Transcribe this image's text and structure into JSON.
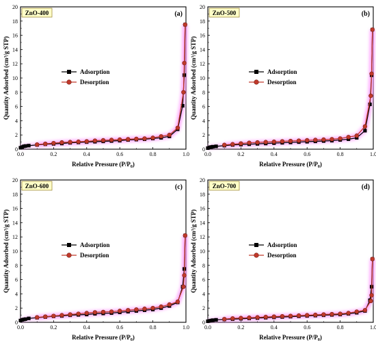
{
  "colors": {
    "adsorption": "#000000",
    "desorption": "#c0392b",
    "desorption_edge": "#7a1f14",
    "tag_fill": "#ffffc8",
    "tag_stroke": "#a08c3c",
    "glow": "#ff99ff"
  },
  "chart_data": [
    {
      "type": "line",
      "panel_tag": "ZnO-400",
      "panel_letter": "(a)",
      "xlabel_main": "Relative Pressure (P/P",
      "xlabel_sub": "0",
      "xlabel_tail": ")",
      "ylabel": "Quantity Adsorbed (cm³/g STP)",
      "xlim": [
        0.0,
        1.0
      ],
      "ylim": [
        0,
        20
      ],
      "xticks": [
        "0.0",
        "0.2",
        "0.4",
        "0.6",
        "0.8",
        "1.0"
      ],
      "yticks": [
        "0",
        "2",
        "4",
        "6",
        "8",
        "10",
        "12",
        "14",
        "16",
        "18",
        "20"
      ],
      "legend_placement": "center-left",
      "series": [
        {
          "name": "Adsorption",
          "marker": "square",
          "x": [
            0.0,
            0.01,
            0.02,
            0.03,
            0.05,
            0.1,
            0.15,
            0.2,
            0.25,
            0.3,
            0.35,
            0.4,
            0.45,
            0.5,
            0.55,
            0.6,
            0.65,
            0.7,
            0.75,
            0.8,
            0.85,
            0.9,
            0.95,
            0.98,
            0.99,
            0.995
          ],
          "y": [
            0.2,
            0.3,
            0.4,
            0.45,
            0.5,
            0.6,
            0.7,
            0.75,
            0.8,
            0.9,
            0.95,
            1.0,
            1.05,
            1.1,
            1.15,
            1.2,
            1.3,
            1.35,
            1.4,
            1.5,
            1.6,
            1.8,
            2.8,
            6.1,
            10.4,
            17.5
          ]
        },
        {
          "name": "Desorption",
          "marker": "circle",
          "x": [
            0.995,
            0.99,
            0.985,
            0.95,
            0.9,
            0.85,
            0.8,
            0.75,
            0.7,
            0.65,
            0.6,
            0.55,
            0.5,
            0.45,
            0.4,
            0.35,
            0.3,
            0.25,
            0.2,
            0.15,
            0.1
          ],
          "y": [
            17.5,
            12.1,
            8.0,
            3.0,
            2.0,
            1.8,
            1.6,
            1.5,
            1.45,
            1.4,
            1.35,
            1.3,
            1.25,
            1.2,
            1.1,
            1.05,
            1.0,
            0.95,
            0.85,
            0.75,
            0.65
          ]
        }
      ]
    },
    {
      "type": "line",
      "panel_tag": "ZnO-500",
      "panel_letter": "(b)",
      "xlabel_main": "Relative Pressure (P/P",
      "xlabel_sub": "0",
      "xlabel_tail": ")",
      "ylabel": "Quantity Adsorbed (cm³/g STP)",
      "xlim": [
        0.0,
        1.0
      ],
      "ylim": [
        0,
        20
      ],
      "xticks": [
        "0.0",
        "0.2",
        "0.4",
        "0.6",
        "0.8",
        "1.0"
      ],
      "yticks": [
        "0",
        "2",
        "4",
        "6",
        "8",
        "10",
        "12",
        "14",
        "16",
        "18",
        "20"
      ],
      "legend_placement": "center-left",
      "series": [
        {
          "name": "Adsorption",
          "marker": "square",
          "x": [
            0.0,
            0.01,
            0.02,
            0.03,
            0.05,
            0.1,
            0.15,
            0.2,
            0.25,
            0.3,
            0.35,
            0.4,
            0.45,
            0.5,
            0.55,
            0.6,
            0.65,
            0.7,
            0.75,
            0.8,
            0.85,
            0.9,
            0.95,
            0.98,
            0.99,
            0.995
          ],
          "y": [
            0.15,
            0.25,
            0.3,
            0.35,
            0.4,
            0.5,
            0.6,
            0.65,
            0.7,
            0.75,
            0.8,
            0.85,
            0.9,
            0.95,
            1.0,
            1.05,
            1.1,
            1.15,
            1.2,
            1.3,
            1.4,
            1.6,
            2.6,
            6.3,
            10.4,
            16.8
          ]
        },
        {
          "name": "Desorption",
          "marker": "circle",
          "x": [
            0.995,
            0.99,
            0.985,
            0.95,
            0.9,
            0.85,
            0.8,
            0.75,
            0.7,
            0.65,
            0.6,
            0.55,
            0.5,
            0.45,
            0.4,
            0.35,
            0.3,
            0.25,
            0.2,
            0.15,
            0.1
          ],
          "y": [
            16.8,
            10.6,
            7.5,
            3.2,
            1.9,
            1.7,
            1.5,
            1.4,
            1.35,
            1.3,
            1.25,
            1.2,
            1.15,
            1.1,
            1.05,
            1.0,
            0.95,
            0.9,
            0.8,
            0.7,
            0.6
          ]
        }
      ]
    },
    {
      "type": "line",
      "panel_tag": "ZnO-600",
      "panel_letter": "(c)",
      "xlabel_main": "Relative Pressure (P/P",
      "xlabel_sub": "0",
      "xlabel_tail": ")",
      "ylabel": "Quantity Adsorbed (cm³/g STP)",
      "xlim": [
        0.0,
        1.0
      ],
      "ylim": [
        0,
        20
      ],
      "xticks": [
        "0.0",
        "0.2",
        "0.4",
        "0.6",
        "0.8",
        "1.0"
      ],
      "yticks": [
        "0",
        "2",
        "4",
        "6",
        "8",
        "10",
        "12",
        "14",
        "16",
        "18",
        "20"
      ],
      "legend_placement": "center-left",
      "series": [
        {
          "name": "Adsorption",
          "marker": "square",
          "x": [
            0.0,
            0.01,
            0.02,
            0.03,
            0.05,
            0.1,
            0.15,
            0.2,
            0.25,
            0.3,
            0.35,
            0.4,
            0.45,
            0.5,
            0.55,
            0.6,
            0.65,
            0.7,
            0.75,
            0.8,
            0.85,
            0.9,
            0.95,
            0.98,
            0.99,
            0.995
          ],
          "y": [
            0.25,
            0.35,
            0.4,
            0.45,
            0.55,
            0.65,
            0.75,
            0.85,
            0.9,
            1.0,
            1.05,
            1.1,
            1.2,
            1.25,
            1.3,
            1.4,
            1.5,
            1.6,
            1.7,
            1.8,
            2.0,
            2.3,
            2.8,
            5.0,
            7.5,
            12.2
          ]
        },
        {
          "name": "Desorption",
          "marker": "circle",
          "x": [
            0.995,
            0.99,
            0.985,
            0.95,
            0.9,
            0.85,
            0.8,
            0.75,
            0.7,
            0.65,
            0.6,
            0.55,
            0.5,
            0.45,
            0.4,
            0.35,
            0.3,
            0.25,
            0.2,
            0.15,
            0.1
          ],
          "y": [
            12.2,
            6.6,
            5.0,
            2.9,
            2.5,
            2.2,
            2.0,
            1.9,
            1.8,
            1.7,
            1.6,
            1.5,
            1.45,
            1.4,
            1.3,
            1.2,
            1.1,
            1.0,
            0.9,
            0.8,
            0.7
          ]
        }
      ]
    },
    {
      "type": "line",
      "panel_tag": "ZnO-700",
      "panel_letter": "(d)",
      "xlabel_main": "Relative Pressure (P/P",
      "xlabel_sub": "0",
      "xlabel_tail": ")",
      "ylabel": "Quantity Adsorbed (cm³/g STP)",
      "xlim": [
        0.0,
        1.0
      ],
      "ylim": [
        0,
        20
      ],
      "xticks": [
        "0.0",
        "0.2",
        "0.4",
        "0.6",
        "0.8",
        "1.0"
      ],
      "yticks": [
        "0",
        "2",
        "4",
        "6",
        "8",
        "10",
        "12",
        "14",
        "16",
        "18",
        "20"
      ],
      "legend_placement": "center-left",
      "series": [
        {
          "name": "Adsorption",
          "marker": "square",
          "x": [
            0.0,
            0.01,
            0.02,
            0.03,
            0.05,
            0.1,
            0.15,
            0.2,
            0.25,
            0.3,
            0.35,
            0.4,
            0.45,
            0.5,
            0.55,
            0.6,
            0.65,
            0.7,
            0.75,
            0.8,
            0.85,
            0.9,
            0.95,
            0.98,
            0.99,
            0.995
          ],
          "y": [
            0.15,
            0.2,
            0.25,
            0.3,
            0.35,
            0.4,
            0.45,
            0.5,
            0.55,
            0.6,
            0.65,
            0.7,
            0.75,
            0.8,
            0.85,
            0.9,
            0.95,
            1.0,
            1.05,
            1.1,
            1.2,
            1.35,
            1.6,
            3.1,
            5.0,
            8.9
          ]
        },
        {
          "name": "Desorption",
          "marker": "circle",
          "x": [
            0.995,
            0.99,
            0.985,
            0.95,
            0.9,
            0.85,
            0.8,
            0.75,
            0.7,
            0.65,
            0.6,
            0.55,
            0.5,
            0.45,
            0.4,
            0.35,
            0.3,
            0.25,
            0.2,
            0.15,
            0.1
          ],
          "y": [
            8.9,
            3.8,
            3.0,
            1.7,
            1.5,
            1.3,
            1.2,
            1.15,
            1.1,
            1.05,
            1.0,
            0.95,
            0.9,
            0.85,
            0.8,
            0.75,
            0.7,
            0.65,
            0.6,
            0.55,
            0.45
          ]
        }
      ]
    }
  ]
}
